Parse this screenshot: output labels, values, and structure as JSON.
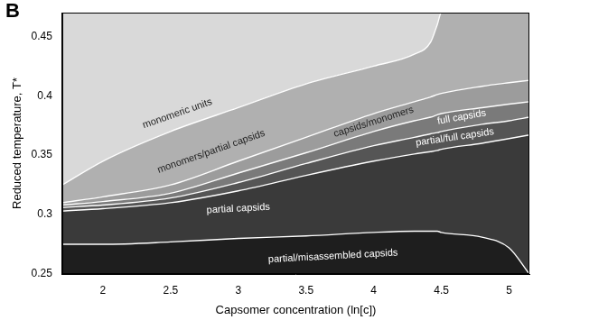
{
  "chart_data": {
    "type": "phase_diagram",
    "panel_label": "B",
    "x_label": "Capsomer concentration (ln[c])",
    "y_label": "Reduced temperature, T*",
    "x": [
      1.7,
      2,
      2.5,
      3,
      3.5,
      4,
      4.3,
      4.42,
      4.47,
      4.5,
      4.8,
      5,
      5.15
    ],
    "boundaries": [
      {
        "values": [
          0.325,
          0.345,
          0.37,
          0.39,
          0.41,
          0.425,
          0.435,
          0.445,
          0.46,
          0.47,
          0.47,
          0.47,
          0.47
        ]
      },
      {
        "values": [
          0.31,
          0.315,
          0.325,
          0.345,
          0.365,
          0.385,
          0.395,
          0.399,
          0.401,
          0.402,
          0.408,
          0.411,
          0.413
        ]
      },
      {
        "values": [
          0.308,
          0.311,
          0.318,
          0.335,
          0.352,
          0.37,
          0.379,
          0.382,
          0.384,
          0.385,
          0.39,
          0.393,
          0.395
        ]
      },
      {
        "values": [
          0.306,
          0.308,
          0.314,
          0.327,
          0.343,
          0.358,
          0.365,
          0.368,
          0.369,
          0.37,
          0.376,
          0.379,
          0.382
        ]
      },
      {
        "values": [
          0.303,
          0.305,
          0.31,
          0.32,
          0.333,
          0.345,
          0.351,
          0.353,
          0.354,
          0.355,
          0.36,
          0.364,
          0.367
        ]
      },
      {
        "values": [
          0.275,
          0.275,
          0.277,
          0.28,
          0.282,
          0.285,
          0.286,
          0.286,
          0.286,
          0.285,
          0.281,
          0.272,
          0.25
        ]
      }
    ],
    "regions": [
      {
        "label": "monomeric units",
        "color": "#d9d9d9",
        "label_x": 2.55,
        "label_y": 0.385
      },
      {
        "label": "monomers/partial capsids",
        "color": "#b0b0b0",
        "label_x": 2.8,
        "label_y": 0.353
      },
      {
        "label": "capsids/monomers",
        "color": "#9c9c9c",
        "label_x": 4.0,
        "label_y": 0.378
      },
      {
        "label": "full capsids",
        "color": "#7a7a7a",
        "label_x": 4.65,
        "label_y": 0.382
      },
      {
        "label": "partial/full capsids",
        "color": "#555555",
        "label_x": 4.6,
        "label_y": 0.365
      },
      {
        "label": "partial capsids",
        "color": "#3a3a3a",
        "label_x": 3.0,
        "label_y": 0.305
      },
      {
        "label": "partial/misassembled capsids",
        "color": "#1e1e1e",
        "label_x": 3.7,
        "label_y": 0.265
      }
    ],
    "xlim": [
      1.7,
      5.15
    ],
    "ylim": [
      0.25,
      0.47
    ],
    "xticks": [
      2,
      2.5,
      3,
      3.5,
      4,
      4.5,
      5
    ],
    "yticks": [
      0.25,
      0.3,
      0.35,
      0.4,
      0.45
    ],
    "grid": false
  }
}
